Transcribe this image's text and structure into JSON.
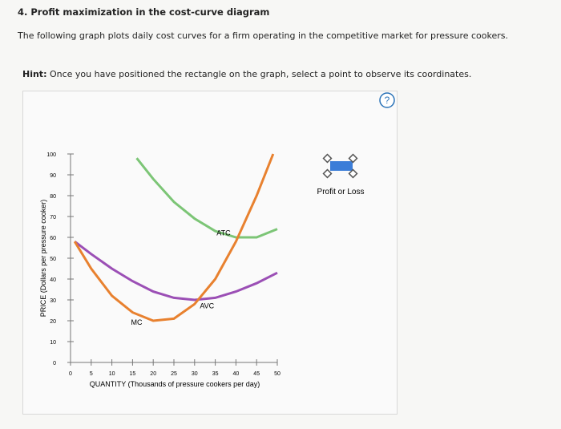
{
  "heading": "4. Profit maximization in the cost-curve diagram",
  "intro": "The following graph plots daily cost curves for a firm operating in the competitive market for pressure cookers.",
  "hint": {
    "label": "Hint:",
    "text": " Once you have positioned the rectangle on the graph, select a point to observe its coordinates."
  },
  "help_icon": "?",
  "tool_label": "Profit or Loss",
  "chart_data": {
    "type": "line",
    "x_label": "QUANTITY (Thousands of pressure cookers per day)",
    "y_label": "PRICE (Dollars per pressure cooker)",
    "xlim": [
      0,
      50
    ],
    "ylim": [
      0,
      100
    ],
    "xticks": [
      0,
      5,
      10,
      15,
      20,
      25,
      30,
      35,
      40,
      45,
      50
    ],
    "yticks": [
      0,
      10,
      20,
      30,
      40,
      50,
      60,
      70,
      80,
      90,
      100
    ],
    "series": [
      {
        "name": "ATC",
        "color": "#7cc576",
        "x": [
          16,
          20,
          25,
          30,
          35,
          40,
          45,
          50
        ],
        "values": [
          98,
          88,
          77,
          69,
          63,
          60,
          60,
          64
        ],
        "label_at": [
          37,
          61
        ]
      },
      {
        "name": "AVC",
        "color": "#9b4fb5",
        "x": [
          1,
          5,
          10,
          15,
          20,
          25,
          30,
          35,
          40,
          45,
          50
        ],
        "values": [
          58,
          52,
          45,
          39,
          34,
          31,
          30,
          31,
          34,
          38,
          43
        ],
        "label_at": [
          33,
          26
        ]
      },
      {
        "name": "MC",
        "color": "#e8812f",
        "x": [
          1,
          5,
          10,
          15,
          20,
          25,
          30,
          35,
          40,
          45,
          49
        ],
        "values": [
          58,
          45,
          32,
          24,
          20,
          21,
          28,
          40,
          58,
          80,
          100
        ],
        "label_at": [
          16,
          18
        ]
      }
    ]
  }
}
